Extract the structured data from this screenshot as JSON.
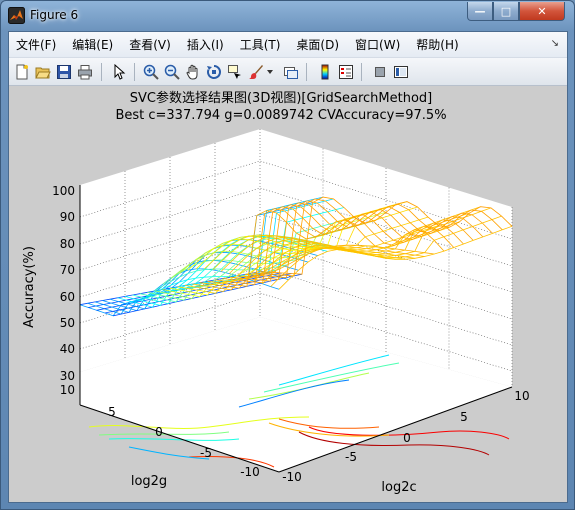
{
  "window": {
    "title": "Figure 6",
    "min_glyph": "—",
    "max_glyph": "□",
    "close_glyph": "✕"
  },
  "menu": {
    "items": [
      "文件(F)",
      "编辑(E)",
      "查看(V)",
      "插入(I)",
      "工具(T)",
      "桌面(D)",
      "窗口(W)",
      "帮助(H)"
    ],
    "overflow_glyph": "↘"
  },
  "toolbar": {
    "icons": [
      "new-figure-icon",
      "open-file-icon",
      "save-icon",
      "print-icon",
      "select-arrow-icon",
      "zoom-in-icon",
      "zoom-out-icon",
      "pan-hand-icon",
      "rotate-3d-icon",
      "data-cursor-icon",
      "brush-icon",
      "brush-dropdown-icon",
      "link-plot-icon",
      "colorbar-icon",
      "legend-icon",
      "hide-plot-tools-icon",
      "show-plot-tools-icon"
    ]
  },
  "figure": {
    "title_line1": "SVC参数选择结果图(3D视图)[GridSearchMethod]",
    "title_line2": "Best c=337.794 g=0.0089742 CVAccuracy=97.5%",
    "zlabel": "Accuracy(%)",
    "xlabel": "log2c",
    "ylabel": "log2g",
    "z_ticks": [
      "100",
      "90",
      "80",
      "70",
      "60",
      "50",
      "40",
      "30",
      "10"
    ],
    "x_ticks": [
      "-10",
      "-5",
      "0",
      "5",
      "10"
    ],
    "y_ticks": [
      "-10",
      "-5",
      "0",
      "5",
      "10"
    ]
  },
  "chart_data": {
    "type": "surface",
    "title": "SVC参数选择结果图(3D视图)[GridSearchMethod]",
    "subtitle": "Best c=337.794 g=0.0089742 CVAccuracy=97.5%",
    "xlabel": "log2c",
    "ylabel": "log2g",
    "zlabel": "Accuracy(%)",
    "xlim": [
      -10,
      10
    ],
    "ylim": [
      -10,
      10
    ],
    "zlim": [
      10,
      100
    ],
    "grid": true,
    "best": {
      "c": 337.794,
      "g": 0.0089742,
      "accuracy": 97.5
    }
  }
}
